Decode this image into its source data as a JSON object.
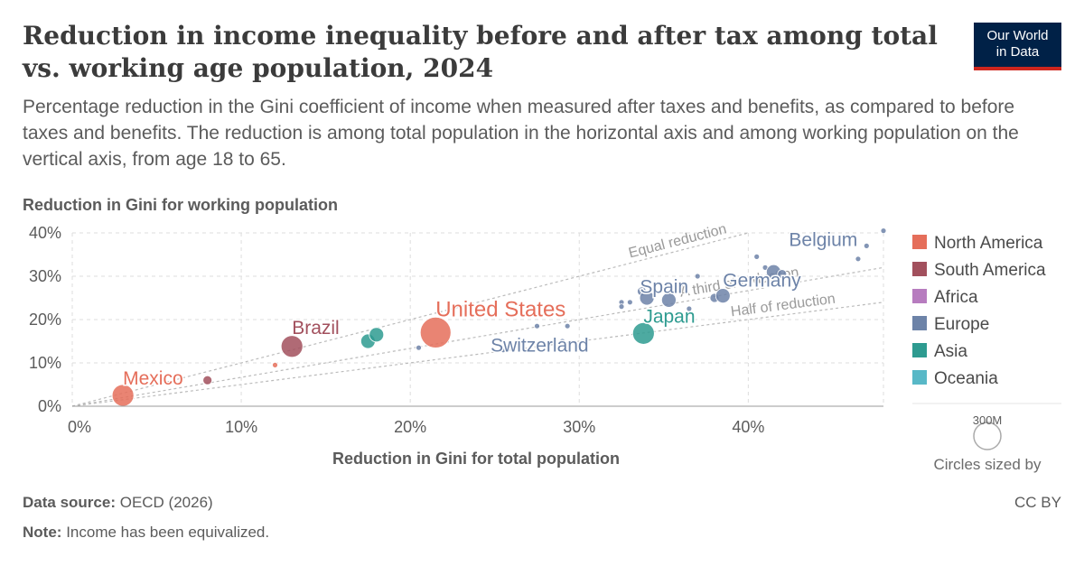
{
  "header": {
    "title": "Reduction in income inequality before and after tax among total vs. working age population, 2024",
    "subtitle": "Percentage reduction in the Gini coefficient of income when measured after taxes and benefits, as compared to before taxes and benefits. The reduction is among total population in the horizontal axis and among working population on the vertical axis, from age 18 to 65.",
    "logo_line1": "Our World",
    "logo_line2": "in Data"
  },
  "footer": {
    "source_label": "Data source:",
    "source_value": "OECD (2026)",
    "note_label": "Note:",
    "note_value": "Income has been equivalized.",
    "license": "CC BY"
  },
  "colors": {
    "north_america": "#e56e5a",
    "south_america": "#a2505d",
    "africa": "#b77cbf",
    "europe": "#6d83a8",
    "asia": "#2e9b90",
    "oceania": "#58b8c7"
  },
  "chart_data": {
    "type": "scatter",
    "title": "Reduction in income inequality before and after tax among total vs. working age population, 2024",
    "xlabel": "Reduction in Gini for total population",
    "ylabel": "Reduction in Gini for working population",
    "xlim": [
      0,
      48
    ],
    "ylim": [
      0,
      40
    ],
    "xticks": [
      "0%",
      "10%",
      "20%",
      "30%",
      "40%"
    ],
    "yticks": [
      "0%",
      "10%",
      "20%",
      "30%",
      "40%"
    ],
    "grid": true,
    "legend_position": "right",
    "legend": [
      "North America",
      "South America",
      "Africa",
      "Europe",
      "Asia",
      "Oceania"
    ],
    "reference_lines": [
      {
        "label": "Equal reduction",
        "slope": 1.0
      },
      {
        "label": "A third of reduction",
        "slope": 0.667
      },
      {
        "label": "Half of reduction",
        "slope": 0.5
      }
    ],
    "size_legend": {
      "label": "300M",
      "caption": "Circles sized by"
    },
    "points": [
      {
        "label": "Mexico",
        "x": 3.0,
        "y": 2.5,
        "region": "north_america",
        "size": "large"
      },
      {
        "label": "",
        "x": 8.0,
        "y": 6.0,
        "region": "south_america",
        "size": "small"
      },
      {
        "label": "",
        "x": 12.0,
        "y": 9.5,
        "region": "north_america",
        "size": "tiny"
      },
      {
        "label": "Brazil",
        "x": 13.0,
        "y": 13.8,
        "region": "south_america",
        "size": "large"
      },
      {
        "label": "",
        "x": 17.5,
        "y": 15.0,
        "region": "asia",
        "size": "medium"
      },
      {
        "label": "",
        "x": 18.0,
        "y": 16.5,
        "region": "asia",
        "size": "medium"
      },
      {
        "label": "United States",
        "x": 21.5,
        "y": 17.0,
        "region": "north_america",
        "size": "huge"
      },
      {
        "label": "",
        "x": 20.5,
        "y": 13.5,
        "region": "europe",
        "size": "tiny"
      },
      {
        "label": "Switzerland",
        "x": 25.5,
        "y": 13.0,
        "region": "europe",
        "size": "tiny"
      },
      {
        "label": "",
        "x": 27.5,
        "y": 18.5,
        "region": "europe",
        "size": "tiny"
      },
      {
        "label": "",
        "x": 29.0,
        "y": 15.0,
        "region": "europe",
        "size": "tiny"
      },
      {
        "label": "",
        "x": 29.3,
        "y": 18.5,
        "region": "europe",
        "size": "tiny"
      },
      {
        "label": "",
        "x": 32.5,
        "y": 24.0,
        "region": "europe",
        "size": "tiny"
      },
      {
        "label": "",
        "x": 32.5,
        "y": 23.0,
        "region": "europe",
        "size": "tiny"
      },
      {
        "label": "",
        "x": 33.0,
        "y": 24.0,
        "region": "europe",
        "size": "tiny"
      },
      {
        "label": "",
        "x": 33.7,
        "y": 26.5,
        "region": "europe",
        "size": "small"
      },
      {
        "label": "",
        "x": 34.0,
        "y": 25.0,
        "region": "europe",
        "size": "medium"
      },
      {
        "label": "Japan",
        "x": 33.8,
        "y": 16.8,
        "region": "asia",
        "size": "large"
      },
      {
        "label": "Spain",
        "x": 35.3,
        "y": 24.5,
        "region": "europe",
        "size": "medium"
      },
      {
        "label": "",
        "x": 36.0,
        "y": 28.0,
        "region": "europe",
        "size": "tiny"
      },
      {
        "label": "",
        "x": 36.5,
        "y": 22.5,
        "region": "europe",
        "size": "tiny"
      },
      {
        "label": "",
        "x": 37.0,
        "y": 30.0,
        "region": "europe",
        "size": "tiny"
      },
      {
        "label": "",
        "x": 38.0,
        "y": 25.0,
        "region": "europe",
        "size": "small"
      },
      {
        "label": "Germany",
        "x": 38.5,
        "y": 25.5,
        "region": "europe",
        "size": "medium"
      },
      {
        "label": "",
        "x": 40.5,
        "y": 34.5,
        "region": "europe",
        "size": "tiny"
      },
      {
        "label": "",
        "x": 41.0,
        "y": 32.0,
        "region": "europe",
        "size": "tiny"
      },
      {
        "label": "",
        "x": 41.5,
        "y": 31.0,
        "region": "europe",
        "size": "medium"
      },
      {
        "label": "",
        "x": 42.0,
        "y": 30.5,
        "region": "europe",
        "size": "small"
      },
      {
        "label": "Belgium",
        "x": 47.0,
        "y": 37.0,
        "region": "europe",
        "size": "tiny"
      },
      {
        "label": "",
        "x": 46.5,
        "y": 34.0,
        "region": "europe",
        "size": "tiny"
      },
      {
        "label": "",
        "x": 48.0,
        "y": 40.5,
        "region": "europe",
        "size": "tiny"
      }
    ]
  }
}
